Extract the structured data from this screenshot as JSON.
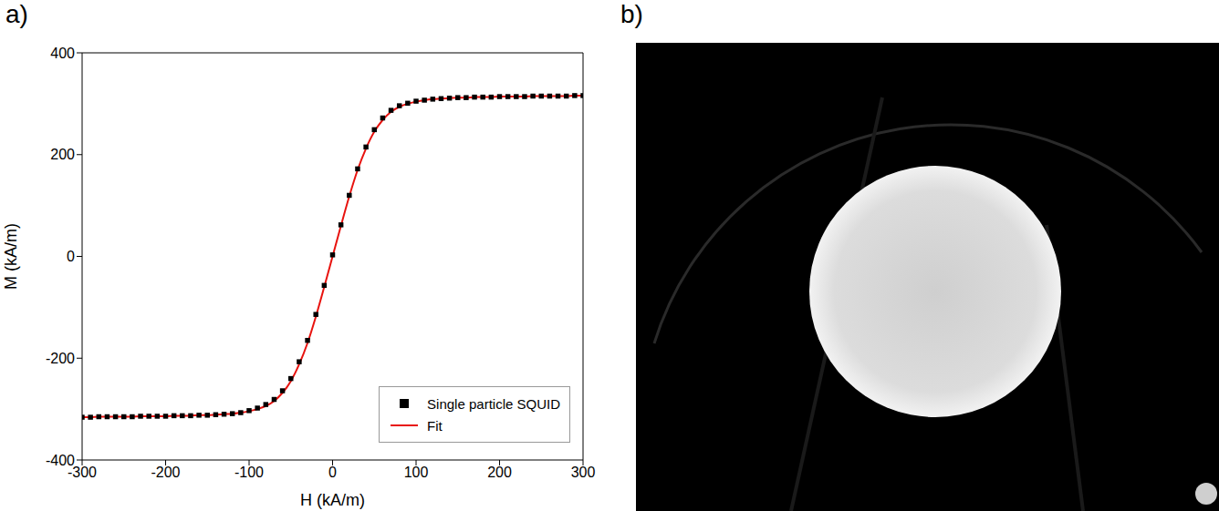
{
  "panel_labels": [
    "a)",
    "b)"
  ],
  "chart_data": {
    "type": "scatter",
    "x_label": "H (kA/m)",
    "y_label": "M (kA/m)",
    "x": [
      -300,
      -290,
      -280,
      -270,
      -260,
      -250,
      -240,
      -230,
      -220,
      -210,
      -200,
      -190,
      -180,
      -170,
      -160,
      -150,
      -140,
      -130,
      -120,
      -110,
      -100,
      -90,
      -80,
      -70,
      -60,
      -50,
      -40,
      -30,
      -20,
      -10,
      0,
      10,
      20,
      30,
      40,
      50,
      60,
      70,
      80,
      90,
      100,
      110,
      120,
      130,
      140,
      150,
      160,
      170,
      180,
      190,
      200,
      210,
      220,
      230,
      240,
      250,
      260,
      270,
      280,
      290,
      300
    ],
    "series": [
      {
        "name": "Single particle SQUID",
        "type": "scatter",
        "marker": "square",
        "color": "#000000",
        "values": [
          -316,
          -316,
          -315,
          -315,
          -315,
          -315,
          -315,
          -314,
          -314,
          -314,
          -314,
          -313,
          -313,
          -313,
          -312,
          -312,
          -311,
          -310,
          -309,
          -307,
          -303,
          -298,
          -291,
          -281,
          -264,
          -240,
          -207,
          -165,
          -114,
          -57,
          3,
          62,
          120,
          172,
          215,
          249,
          272,
          287,
          296,
          301,
          305,
          307,
          309,
          310,
          311,
          312,
          312,
          313,
          313,
          313,
          314,
          314,
          314,
          314,
          315,
          315,
          315,
          315,
          315,
          316,
          316
        ]
      },
      {
        "name": "Fit",
        "type": "line",
        "line_style": "solid",
        "color": "#e8130f",
        "values": [
          -316,
          -316,
          -315,
          -315,
          -315,
          -315,
          -315,
          -314,
          -314,
          -314,
          -314,
          -313,
          -313,
          -313,
          -312,
          -312,
          -311,
          -310,
          -309,
          -307,
          -304,
          -300,
          -294,
          -284,
          -268,
          -245,
          -212,
          -170,
          -118,
          -60,
          0,
          60,
          118,
          170,
          212,
          245,
          268,
          284,
          294,
          300,
          304,
          307,
          309,
          310,
          311,
          312,
          312,
          313,
          313,
          313,
          314,
          314,
          314,
          314,
          315,
          315,
          315,
          315,
          315,
          316,
          316
        ]
      }
    ],
    "xlim": [
      -300,
      300
    ],
    "xticks": [
      -300,
      -200,
      -100,
      0,
      100,
      200,
      300
    ],
    "ylim": [
      -400,
      400
    ],
    "yticks": [
      -400,
      -200,
      0,
      200,
      400
    ],
    "legend": "lower right",
    "grid": false
  }
}
